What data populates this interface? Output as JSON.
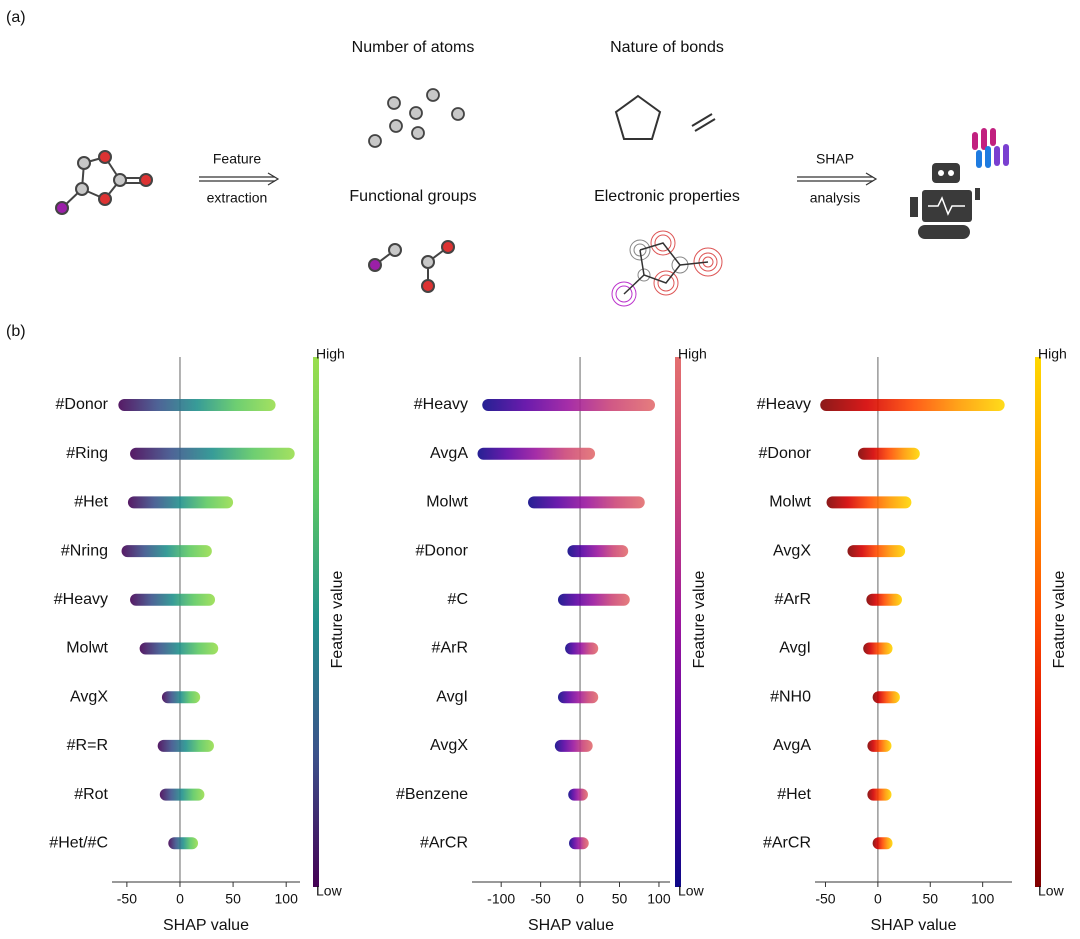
{
  "panel_a": {
    "label": "(a)",
    "feature_extraction": [
      "Feature",
      "extraction"
    ],
    "shap_analysis": [
      "SHAP",
      "analysis"
    ],
    "groups": [
      "Number of atoms",
      "Nature of bonds",
      "Functional groups",
      "Electronic properties"
    ]
  },
  "panel_b": {
    "label": "(b)"
  },
  "chart_data": [
    {
      "type": "beeswarm",
      "xlabel": "SHAP value",
      "colorbar_label": "Feature value",
      "colorbar_high": "High",
      "colorbar_low": "Low",
      "colormap": [
        "#440154",
        "#3b528b",
        "#21918c",
        "#5ec962",
        "#9ade4e"
      ],
      "xlim": [
        -64,
        113
      ],
      "xticks": [
        -50,
        0,
        50,
        100
      ],
      "categories": [
        "#Donor",
        "#Ring",
        "#Het",
        "#Nring",
        "#Heavy",
        "Molwt",
        "AvgX",
        "#R=R",
        "#Rot",
        "#Het/#C"
      ],
      "ranges": [
        [
          -58,
          90
        ],
        [
          -47,
          108
        ],
        [
          -49,
          50
        ],
        [
          -55,
          30
        ],
        [
          -47,
          33
        ],
        [
          -38,
          36
        ],
        [
          -17,
          19
        ],
        [
          -21,
          32
        ],
        [
          -19,
          23
        ],
        [
          -11,
          17
        ]
      ]
    },
    {
      "type": "beeswarm",
      "xlabel": "SHAP value",
      "colorbar_label": "Feature value",
      "colorbar_high": "High",
      "colorbar_low": "Low",
      "colormap": [
        "#0d0887",
        "#5a02a3",
        "#9c179e",
        "#cc4778",
        "#e36f6f"
      ],
      "xlim": [
        -137,
        114
      ],
      "xticks": [
        -100,
        -50,
        0,
        50,
        100
      ],
      "categories": [
        "#Heavy",
        "AvgA",
        "Molwt",
        "#Donor",
        "#C",
        "#ArR",
        "AvgI",
        "AvgX",
        "#Benzene",
        "#ArCR"
      ],
      "ranges": [
        [
          -124,
          95
        ],
        [
          -130,
          19
        ],
        [
          -66,
          82
        ],
        [
          -16,
          61
        ],
        [
          -28,
          63
        ],
        [
          -19,
          23
        ],
        [
          -28,
          23
        ],
        [
          -32,
          16
        ],
        [
          -15,
          10
        ],
        [
          -14,
          11
        ]
      ]
    },
    {
      "type": "beeswarm",
      "xlabel": "SHAP value",
      "colorbar_label": "Feature value",
      "colorbar_high": "High",
      "colorbar_low": "Low",
      "colormap": [
        "#7f0000",
        "#d40000",
        "#ff4a00",
        "#ff9a00",
        "#ffd800"
      ],
      "xlim": [
        -60,
        128
      ],
      "xticks": [
        -50,
        0,
        50,
        100
      ],
      "categories": [
        "#Heavy",
        "#Donor",
        "Molwt",
        "AvgX",
        "#ArR",
        "AvgI",
        "#NH0",
        "AvgA",
        "#Het",
        "#ArCR"
      ],
      "ranges": [
        [
          -55,
          121
        ],
        [
          -19,
          40
        ],
        [
          -49,
          32
        ],
        [
          -29,
          26
        ],
        [
          -11,
          23
        ],
        [
          -14,
          14
        ],
        [
          -5,
          21
        ],
        [
          -10,
          13
        ],
        [
          -10,
          13
        ],
        [
          -5,
          14
        ]
      ]
    }
  ]
}
